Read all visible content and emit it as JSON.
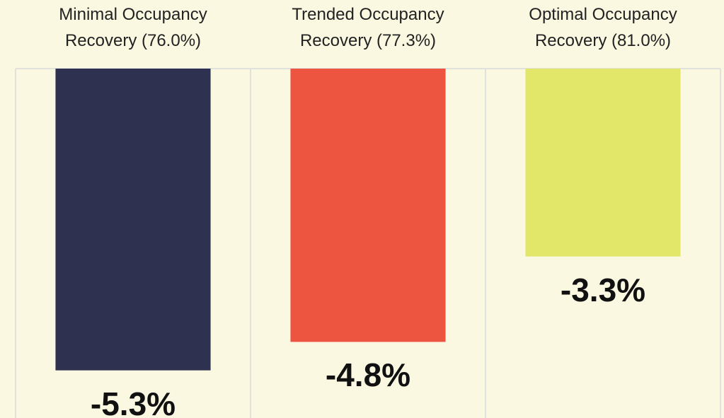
{
  "chart_data": {
    "type": "bar",
    "categories": [
      "Minimal Occupancy Recovery (76.0%)",
      "Trended Occupancy Recovery (77.3%)",
      "Optimal Occupancy Recovery (81.0%)"
    ],
    "series": [
      {
        "colors": [
          "#2e3250",
          "#ee5541",
          "#e2e76a"
        ],
        "values": [
          -5.3,
          -4.8,
          -3.3
        ],
        "value_labels": [
          "-5.3%",
          "-4.8%",
          "-3.3%"
        ]
      }
    ],
    "ylim": [
      -6,
      0
    ]
  }
}
